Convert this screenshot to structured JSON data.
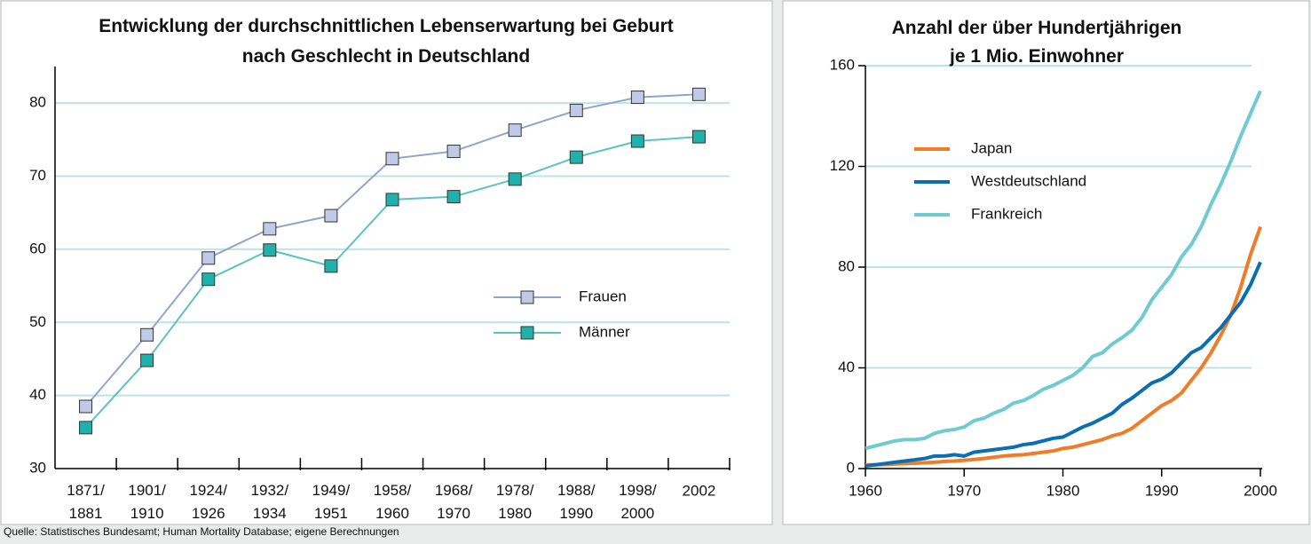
{
  "source": "Quelle: Statistisches Bundesamt; Human Mortality Database; eigene Berechnungen",
  "chart_data": [
    {
      "type": "line",
      "title": "Entwicklung der durchschnittlichen Lebenserwartung bei Geburt\nnach Geschlecht in Deutschland",
      "categories": [
        "1871/\n1881",
        "1901/\n1910",
        "1924/\n1926",
        "1932/\n1934",
        "1949/\n1951",
        "1958/\n1960",
        "1968/\n1970",
        "1978/\n1980",
        "1988/\n1990",
        "1998/\n2000",
        "2002"
      ],
      "series": [
        {
          "name": "Frauen",
          "color": "#8fa5d0",
          "marker_color": "#c0c9e6",
          "values": [
            38.5,
            48.3,
            58.8,
            62.8,
            64.6,
            72.4,
            73.4,
            76.3,
            79.0,
            80.8,
            81.2
          ]
        },
        {
          "name": "Männer",
          "color": "#5cc3c0",
          "marker_color": "#20b2aa",
          "values": [
            35.6,
            44.8,
            55.9,
            59.9,
            57.7,
            66.8,
            67.2,
            69.6,
            72.6,
            74.8,
            75.4
          ]
        }
      ],
      "ylim": [
        30,
        85
      ],
      "yticks": [
        30,
        40,
        50,
        60,
        70,
        80
      ],
      "grid": true,
      "legend": "right"
    },
    {
      "type": "line",
      "title": "Anzahl der über Hundertjährigen\nje 1 Mio. Einwohner",
      "x": [
        1960,
        1961,
        1962,
        1963,
        1964,
        1965,
        1966,
        1967,
        1968,
        1969,
        1970,
        1971,
        1972,
        1973,
        1974,
        1975,
        1976,
        1977,
        1978,
        1979,
        1980,
        1981,
        1982,
        1983,
        1984,
        1985,
        1986,
        1987,
        1988,
        1989,
        1990,
        1991,
        1992,
        1993,
        1994,
        1995,
        1996,
        1997,
        1998,
        1999,
        2000
      ],
      "series": [
        {
          "name": "Japan",
          "color": "#f07c28",
          "values": [
            1.5,
            1.5,
            1.6,
            1.8,
            2,
            2.1,
            2.3,
            2.5,
            2.8,
            3,
            3.3,
            3.6,
            4,
            4.5,
            5,
            5.3,
            5.5,
            6,
            6.5,
            7,
            8,
            8.5,
            9.5,
            10.5,
            11.5,
            13,
            14,
            16,
            19,
            22,
            25,
            27,
            30,
            35,
            40,
            46,
            53,
            61,
            72,
            85,
            96
          ]
        },
        {
          "name": "Westdeutschland",
          "color": "#0a6eb4",
          "values": [
            1,
            1.5,
            2,
            2.5,
            3,
            3.5,
            4,
            5,
            5,
            5.5,
            5,
            6.5,
            7,
            7.5,
            8,
            8.5,
            9.5,
            10,
            11,
            12,
            12.5,
            14.5,
            16.5,
            18,
            20,
            22,
            25.5,
            28,
            31,
            34,
            35.5,
            38,
            42,
            46,
            48,
            52,
            56,
            61,
            66,
            73,
            82
          ]
        },
        {
          "name": "Frankreich",
          "color": "#6fcbd0",
          "values": [
            8,
            9,
            10,
            11,
            11.5,
            11.5,
            12,
            14,
            15,
            15.5,
            16.5,
            19,
            20,
            22,
            23.5,
            26,
            27,
            29,
            31.5,
            33,
            35,
            37,
            40,
            44.5,
            46,
            49.5,
            52,
            55,
            60,
            67,
            72,
            77,
            84,
            89,
            96,
            105,
            113,
            122,
            132,
            141,
            150
          ]
        }
      ],
      "xlim": [
        1960,
        2000
      ],
      "xticks": [
        1960,
        1970,
        1980,
        1990,
        2000
      ],
      "ylim": [
        0,
        160
      ],
      "yticks": [
        0,
        40,
        80,
        120,
        160
      ],
      "grid": true,
      "legend": "upper left"
    }
  ]
}
